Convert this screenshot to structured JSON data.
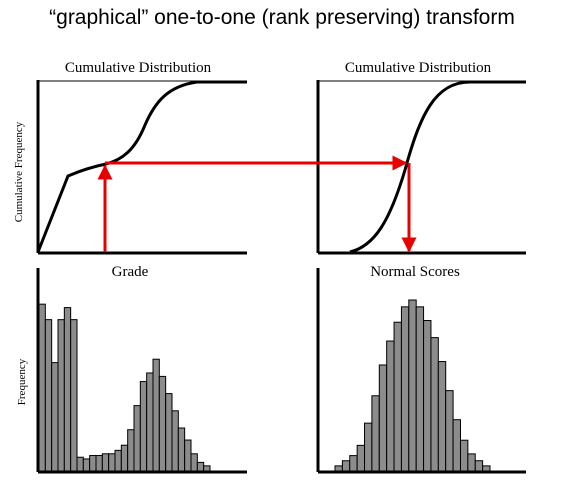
{
  "title": "“graphical” one-to-one (rank preserving) transform",
  "panels": {
    "cdf_left": {
      "title": "Cumulative Distribution",
      "ylabel": "Cumulative Frequency"
    },
    "cdf_right": {
      "title": "Cumulative Distribution"
    },
    "hist_left": {
      "title": "Grade",
      "ylabel": "Frequency"
    },
    "hist_right": {
      "title": "Normal Scores"
    }
  },
  "colors": {
    "arrow": "#e60000",
    "bar_fill": "#8c8c8c",
    "line": "#000000"
  },
  "chart_data": [
    {
      "type": "line",
      "title": "Cumulative Distribution",
      "ylabel": "Cumulative Frequency",
      "x": [
        0,
        0.1,
        0.2,
        0.3,
        0.4,
        0.5,
        0.6,
        0.7,
        0.8,
        0.9,
        1.0
      ],
      "values": [
        0,
        0.25,
        0.5,
        0.55,
        0.58,
        0.62,
        0.75,
        0.9,
        0.97,
        1.0,
        1.0
      ]
    },
    {
      "type": "line",
      "title": "Cumulative Distribution",
      "x": [
        0,
        0.1,
        0.2,
        0.3,
        0.4,
        0.5,
        0.6,
        0.7,
        0.8,
        0.9,
        1.0
      ],
      "values": [
        0,
        0.02,
        0.06,
        0.16,
        0.35,
        0.6,
        0.82,
        0.95,
        0.99,
        1.0,
        1.0
      ]
    },
    {
      "type": "bar",
      "title": "Grade",
      "ylabel": "Frequency",
      "values": [
        0.97,
        0.88,
        0.63,
        0.88,
        0.95,
        0.88,
        0.08,
        0.07,
        0.09,
        0.09,
        0.1,
        0.1,
        0.12,
        0.15,
        0.24,
        0.38,
        0.52,
        0.57,
        0.65,
        0.55,
        0.45,
        0.35,
        0.25,
        0.18,
        0.1,
        0.05,
        0.03
      ]
    },
    {
      "type": "bar",
      "title": "Normal Scores",
      "values": [
        0.03,
        0.06,
        0.09,
        0.15,
        0.28,
        0.44,
        0.62,
        0.76,
        0.87,
        0.96,
        1.0,
        0.96,
        0.88,
        0.78,
        0.64,
        0.47,
        0.3,
        0.18,
        0.1,
        0.06,
        0.03
      ]
    }
  ]
}
